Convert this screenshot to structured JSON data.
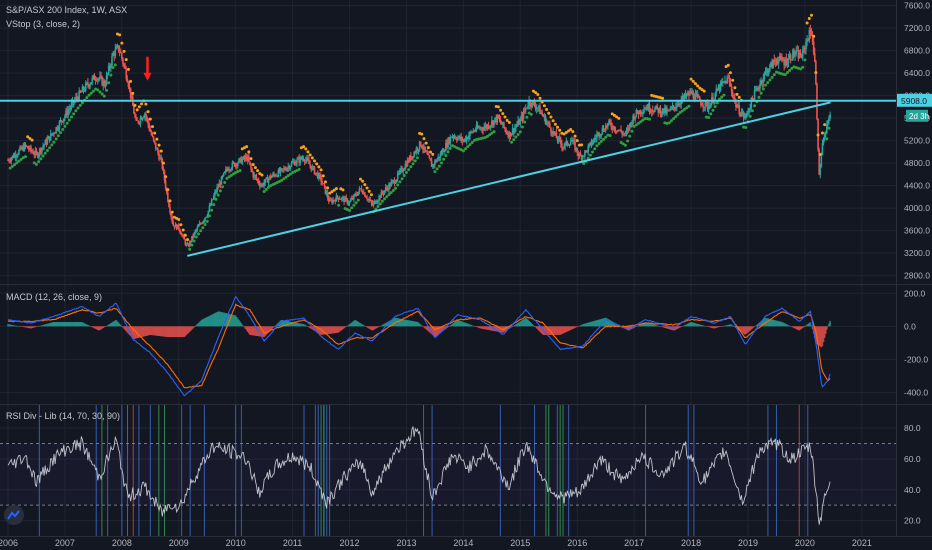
{
  "header": {
    "symbol_line": "S&P/ASX 200 Index, 1W, ASX",
    "indicator_line": "VStop (3, close, 2)"
  },
  "macd_label": "MACD (12, 26, close, 9)",
  "rsi_label": "RSI Div - Lib (14, 70, 30, 90)",
  "price_badge": {
    "value": "5908.0",
    "countdown": "2d 3h"
  },
  "colors": {
    "background": "#131722",
    "trendline": "#4dd0e1",
    "up_candle": "#26a69a",
    "down_candle": "#ef5350",
    "vstop_up": "#2e9e3e",
    "vstop_down": "#f7a21b",
    "macd_line": "#2962ff",
    "signal_line": "#ff6d00",
    "rsi_line": "#d1d4dc",
    "marker_red": "#ff1e1e"
  },
  "chart_data": [
    {
      "type": "candlestick",
      "pane": "price",
      "title": "S&P/ASX 200 Index, 1W, ASX",
      "indicator": "VStop (3, close, 2)",
      "yticks": [
        "2800.0",
        "3200.0",
        "3600.0",
        "4000.0",
        "4400.0",
        "4800.0",
        "5200.0",
        "5600.0",
        "6000.0",
        "6400.0",
        "6800.0",
        "7200.0",
        "7600.0"
      ],
      "ylim": [
        2650,
        7700
      ],
      "xticks": [
        "2006",
        "2007",
        "2008",
        "2009",
        "2010",
        "2011",
        "2012",
        "2013",
        "2014",
        "2015",
        "2016",
        "2017",
        "2018",
        "2019",
        "2020",
        "2021"
      ],
      "xlim": [
        2006.0,
        2021.6
      ],
      "close_path": [
        {
          "x": 2006.0,
          "y": 4850
        },
        {
          "x": 2006.3,
          "y": 5100
        },
        {
          "x": 2006.5,
          "y": 4950
        },
        {
          "x": 2006.8,
          "y": 5350
        },
        {
          "x": 2007.0,
          "y": 5650
        },
        {
          "x": 2007.2,
          "y": 5950
        },
        {
          "x": 2007.4,
          "y": 6200
        },
        {
          "x": 2007.55,
          "y": 6350
        },
        {
          "x": 2007.7,
          "y": 6200
        },
        {
          "x": 2007.85,
          "y": 6750
        },
        {
          "x": 2007.95,
          "y": 6850
        },
        {
          "x": 2008.1,
          "y": 6300
        },
        {
          "x": 2008.25,
          "y": 5500
        },
        {
          "x": 2008.4,
          "y": 5700
        },
        {
          "x": 2008.55,
          "y": 5200
        },
        {
          "x": 2008.7,
          "y": 4800
        },
        {
          "x": 2008.8,
          "y": 4200
        },
        {
          "x": 2008.9,
          "y": 3700
        },
        {
          "x": 2009.0,
          "y": 3650
        },
        {
          "x": 2009.15,
          "y": 3300
        },
        {
          "x": 2009.3,
          "y": 3600
        },
        {
          "x": 2009.5,
          "y": 3900
        },
        {
          "x": 2009.65,
          "y": 4300
        },
        {
          "x": 2009.85,
          "y": 4700
        },
        {
          "x": 2010.0,
          "y": 4800
        },
        {
          "x": 2010.2,
          "y": 4900
        },
        {
          "x": 2010.3,
          "y": 4600
        },
        {
          "x": 2010.45,
          "y": 4400
        },
        {
          "x": 2010.6,
          "y": 4550
        },
        {
          "x": 2010.8,
          "y": 4650
        },
        {
          "x": 2011.0,
          "y": 4800
        },
        {
          "x": 2011.2,
          "y": 4900
        },
        {
          "x": 2011.35,
          "y": 4700
        },
        {
          "x": 2011.5,
          "y": 4500
        },
        {
          "x": 2011.65,
          "y": 4100
        },
        {
          "x": 2011.8,
          "y": 4200
        },
        {
          "x": 2012.0,
          "y": 4100
        },
        {
          "x": 2012.2,
          "y": 4350
        },
        {
          "x": 2012.4,
          "y": 4050
        },
        {
          "x": 2012.6,
          "y": 4300
        },
        {
          "x": 2012.8,
          "y": 4500
        },
        {
          "x": 2013.0,
          "y": 4800
        },
        {
          "x": 2013.25,
          "y": 5150
        },
        {
          "x": 2013.45,
          "y": 4750
        },
        {
          "x": 2013.6,
          "y": 4950
        },
        {
          "x": 2013.8,
          "y": 5300
        },
        {
          "x": 2014.0,
          "y": 5200
        },
        {
          "x": 2014.2,
          "y": 5400
        },
        {
          "x": 2014.4,
          "y": 5450
        },
        {
          "x": 2014.6,
          "y": 5600
        },
        {
          "x": 2014.8,
          "y": 5300
        },
        {
          "x": 2015.0,
          "y": 5550
        },
        {
          "x": 2015.15,
          "y": 5900
        },
        {
          "x": 2015.3,
          "y": 5800
        },
        {
          "x": 2015.45,
          "y": 5550
        },
        {
          "x": 2015.6,
          "y": 5300
        },
        {
          "x": 2015.75,
          "y": 5100
        },
        {
          "x": 2015.9,
          "y": 5200
        },
        {
          "x": 2016.05,
          "y": 4900
        },
        {
          "x": 2016.15,
          "y": 5000
        },
        {
          "x": 2016.35,
          "y": 5300
        },
        {
          "x": 2016.55,
          "y": 5500
        },
        {
          "x": 2016.7,
          "y": 5400
        },
        {
          "x": 2016.85,
          "y": 5300
        },
        {
          "x": 2017.0,
          "y": 5650
        },
        {
          "x": 2017.2,
          "y": 5800
        },
        {
          "x": 2017.4,
          "y": 5750
        },
        {
          "x": 2017.6,
          "y": 5700
        },
        {
          "x": 2017.8,
          "y": 5900
        },
        {
          "x": 2018.0,
          "y": 6050
        },
        {
          "x": 2018.15,
          "y": 5900
        },
        {
          "x": 2018.3,
          "y": 5800
        },
        {
          "x": 2018.5,
          "y": 6150
        },
        {
          "x": 2018.65,
          "y": 6300
        },
        {
          "x": 2018.8,
          "y": 5800
        },
        {
          "x": 2018.95,
          "y": 5600
        },
        {
          "x": 2019.1,
          "y": 6000
        },
        {
          "x": 2019.3,
          "y": 6400
        },
        {
          "x": 2019.5,
          "y": 6650
        },
        {
          "x": 2019.65,
          "y": 6600
        },
        {
          "x": 2019.8,
          "y": 6750
        },
        {
          "x": 2019.95,
          "y": 6700
        },
        {
          "x": 2020.05,
          "y": 7050
        },
        {
          "x": 2020.12,
          "y": 7150
        },
        {
          "x": 2020.18,
          "y": 6500
        },
        {
          "x": 2020.22,
          "y": 5400
        },
        {
          "x": 2020.25,
          "y": 4550
        },
        {
          "x": 2020.3,
          "y": 5100
        },
        {
          "x": 2020.38,
          "y": 5400
        },
        {
          "x": 2020.45,
          "y": 5750
        }
      ],
      "horizontal_line": 5908.0,
      "trendline": [
        {
          "x": 2009.15,
          "y": 3150
        },
        {
          "x": 2020.45,
          "y": 5880
        }
      ],
      "arrow_marker": {
        "x": 2008.45,
        "y": 6300
      }
    },
    {
      "type": "line",
      "pane": "macd",
      "title": "MACD (12, 26, close, 9)",
      "yticks": [
        "200.0",
        "0.0",
        "-200.0",
        "-400.0"
      ],
      "ylim": [
        -470,
        250
      ],
      "series": [
        {
          "name": "",
          "role": "macd",
          "points": [
            {
              "x": 2006.0,
              "y": 40
            },
            {
              "x": 2006.4,
              "y": 20
            },
            {
              "x": 2006.8,
              "y": 60
            },
            {
              "x": 2007.3,
              "y": 120
            },
            {
              "x": 2007.6,
              "y": 60
            },
            {
              "x": 2007.9,
              "y": 140
            },
            {
              "x": 2008.2,
              "y": -80
            },
            {
              "x": 2008.5,
              "y": -160
            },
            {
              "x": 2008.8,
              "y": -280
            },
            {
              "x": 2009.1,
              "y": -420
            },
            {
              "x": 2009.4,
              "y": -330
            },
            {
              "x": 2009.7,
              "y": -60
            },
            {
              "x": 2010.0,
              "y": 180
            },
            {
              "x": 2010.25,
              "y": 60
            },
            {
              "x": 2010.5,
              "y": -90
            },
            {
              "x": 2010.8,
              "y": 30
            },
            {
              "x": 2011.2,
              "y": 50
            },
            {
              "x": 2011.5,
              "y": -60
            },
            {
              "x": 2011.8,
              "y": -140
            },
            {
              "x": 2012.1,
              "y": -40
            },
            {
              "x": 2012.4,
              "y": -90
            },
            {
              "x": 2012.8,
              "y": 60
            },
            {
              "x": 2013.2,
              "y": 110
            },
            {
              "x": 2013.5,
              "y": -70
            },
            {
              "x": 2013.9,
              "y": 70
            },
            {
              "x": 2014.3,
              "y": 40
            },
            {
              "x": 2014.7,
              "y": -50
            },
            {
              "x": 2015.1,
              "y": 100
            },
            {
              "x": 2015.4,
              "y": -20
            },
            {
              "x": 2015.7,
              "y": -140
            },
            {
              "x": 2016.1,
              "y": -120
            },
            {
              "x": 2016.5,
              "y": 40
            },
            {
              "x": 2016.9,
              "y": -20
            },
            {
              "x": 2017.2,
              "y": 40
            },
            {
              "x": 2017.7,
              "y": -10
            },
            {
              "x": 2018.0,
              "y": 60
            },
            {
              "x": 2018.4,
              "y": 20
            },
            {
              "x": 2018.7,
              "y": 60
            },
            {
              "x": 2018.95,
              "y": -110
            },
            {
              "x": 2019.3,
              "y": 60
            },
            {
              "x": 2019.6,
              "y": 110
            },
            {
              "x": 2019.9,
              "y": 30
            },
            {
              "x": 2020.1,
              "y": 90
            },
            {
              "x": 2020.2,
              "y": -120
            },
            {
              "x": 2020.3,
              "y": -370
            },
            {
              "x": 2020.4,
              "y": -330
            },
            {
              "x": 2020.45,
              "y": -280
            }
          ]
        },
        {
          "name": "",
          "role": "signal",
          "points": [
            {
              "x": 2006.0,
              "y": 30
            },
            {
              "x": 2006.4,
              "y": 30
            },
            {
              "x": 2006.8,
              "y": 40
            },
            {
              "x": 2007.3,
              "y": 100
            },
            {
              "x": 2007.6,
              "y": 80
            },
            {
              "x": 2007.9,
              "y": 110
            },
            {
              "x": 2008.2,
              "y": -20
            },
            {
              "x": 2008.5,
              "y": -120
            },
            {
              "x": 2008.8,
              "y": -230
            },
            {
              "x": 2009.1,
              "y": -370
            },
            {
              "x": 2009.4,
              "y": -360
            },
            {
              "x": 2009.7,
              "y": -130
            },
            {
              "x": 2010.0,
              "y": 130
            },
            {
              "x": 2010.25,
              "y": 100
            },
            {
              "x": 2010.5,
              "y": -40
            },
            {
              "x": 2010.8,
              "y": 0
            },
            {
              "x": 2011.2,
              "y": 40
            },
            {
              "x": 2011.5,
              "y": -20
            },
            {
              "x": 2011.8,
              "y": -110
            },
            {
              "x": 2012.1,
              "y": -70
            },
            {
              "x": 2012.4,
              "y": -70
            },
            {
              "x": 2012.8,
              "y": 20
            },
            {
              "x": 2013.2,
              "y": 90
            },
            {
              "x": 2013.5,
              "y": -20
            },
            {
              "x": 2013.9,
              "y": 40
            },
            {
              "x": 2014.3,
              "y": 50
            },
            {
              "x": 2014.7,
              "y": -20
            },
            {
              "x": 2015.1,
              "y": 60
            },
            {
              "x": 2015.4,
              "y": 20
            },
            {
              "x": 2015.7,
              "y": -100
            },
            {
              "x": 2016.1,
              "y": -130
            },
            {
              "x": 2016.5,
              "y": 0
            },
            {
              "x": 2016.9,
              "y": 0
            },
            {
              "x": 2017.2,
              "y": 20
            },
            {
              "x": 2017.7,
              "y": 10
            },
            {
              "x": 2018.0,
              "y": 40
            },
            {
              "x": 2018.4,
              "y": 30
            },
            {
              "x": 2018.7,
              "y": 50
            },
            {
              "x": 2018.95,
              "y": -70
            },
            {
              "x": 2019.3,
              "y": 20
            },
            {
              "x": 2019.6,
              "y": 90
            },
            {
              "x": 2019.9,
              "y": 50
            },
            {
              "x": 2020.1,
              "y": 70
            },
            {
              "x": 2020.2,
              "y": -40
            },
            {
              "x": 2020.3,
              "y": -270
            },
            {
              "x": 2020.4,
              "y": -330
            },
            {
              "x": 2020.45,
              "y": -310
            }
          ]
        }
      ]
    },
    {
      "type": "line",
      "pane": "rsi",
      "title": "RSI Div - Lib (14, 70, 30, 90)",
      "yticks": [
        "20.0",
        "40.0",
        "60.0",
        "80.0"
      ],
      "ylim": [
        10,
        95
      ],
      "levels": [
        70,
        30
      ],
      "rsi_path": [
        {
          "x": 2006.0,
          "y": 55
        },
        {
          "x": 2006.3,
          "y": 62
        },
        {
          "x": 2006.5,
          "y": 45
        },
        {
          "x": 2006.8,
          "y": 60
        },
        {
          "x": 2007.0,
          "y": 66
        },
        {
          "x": 2007.3,
          "y": 70
        },
        {
          "x": 2007.6,
          "y": 48
        },
        {
          "x": 2007.9,
          "y": 72
        },
        {
          "x": 2008.1,
          "y": 35
        },
        {
          "x": 2008.4,
          "y": 42
        },
        {
          "x": 2008.7,
          "y": 25
        },
        {
          "x": 2008.9,
          "y": 32
        },
        {
          "x": 2009.0,
          "y": 28
        },
        {
          "x": 2009.3,
          "y": 50
        },
        {
          "x": 2009.6,
          "y": 68
        },
        {
          "x": 2009.9,
          "y": 65
        },
        {
          "x": 2010.2,
          "y": 60
        },
        {
          "x": 2010.4,
          "y": 38
        },
        {
          "x": 2010.7,
          "y": 55
        },
        {
          "x": 2011.0,
          "y": 62
        },
        {
          "x": 2011.3,
          "y": 55
        },
        {
          "x": 2011.6,
          "y": 32
        },
        {
          "x": 2011.9,
          "y": 48
        },
        {
          "x": 2012.2,
          "y": 58
        },
        {
          "x": 2012.4,
          "y": 38
        },
        {
          "x": 2012.8,
          "y": 65
        },
        {
          "x": 2013.2,
          "y": 80
        },
        {
          "x": 2013.45,
          "y": 35
        },
        {
          "x": 2013.8,
          "y": 62
        },
        {
          "x": 2014.1,
          "y": 55
        },
        {
          "x": 2014.4,
          "y": 66
        },
        {
          "x": 2014.8,
          "y": 42
        },
        {
          "x": 2015.1,
          "y": 70
        },
        {
          "x": 2015.45,
          "y": 44
        },
        {
          "x": 2015.7,
          "y": 35
        },
        {
          "x": 2016.05,
          "y": 38
        },
        {
          "x": 2016.4,
          "y": 60
        },
        {
          "x": 2016.8,
          "y": 45
        },
        {
          "x": 2017.1,
          "y": 62
        },
        {
          "x": 2017.5,
          "y": 50
        },
        {
          "x": 2017.9,
          "y": 68
        },
        {
          "x": 2018.2,
          "y": 45
        },
        {
          "x": 2018.6,
          "y": 66
        },
        {
          "x": 2018.9,
          "y": 32
        },
        {
          "x": 2019.2,
          "y": 66
        },
        {
          "x": 2019.5,
          "y": 70
        },
        {
          "x": 2019.75,
          "y": 60
        },
        {
          "x": 2020.1,
          "y": 68
        },
        {
          "x": 2020.2,
          "y": 38
        },
        {
          "x": 2020.25,
          "y": 18
        },
        {
          "x": 2020.32,
          "y": 30
        },
        {
          "x": 2020.4,
          "y": 42
        },
        {
          "x": 2020.45,
          "y": 48
        }
      ],
      "divergence_lines_blue": [
        2006.55,
        2007.55,
        2007.75,
        2008.0,
        2008.3,
        2008.5,
        2009.05,
        2009.2,
        2009.45,
        2010.0,
        2010.1,
        2011.2,
        2011.4,
        2011.45,
        2011.55,
        2011.6,
        2011.65,
        2013.3,
        2013.45,
        2014.65,
        2015.25,
        2015.65,
        2015.85,
        2017.2,
        2017.95,
        2018.05,
        2019.35,
        2019.5,
        2020.05
      ],
      "divergence_lines_green": [
        2007.65,
        2008.65,
        2008.75,
        2011.5,
        2011.55,
        2015.45,
        2015.5,
        2015.7,
        2015.75
      ],
      "divergence_lines_red": [
        2008.1,
        2008.2,
        2019.9
      ]
    }
  ]
}
